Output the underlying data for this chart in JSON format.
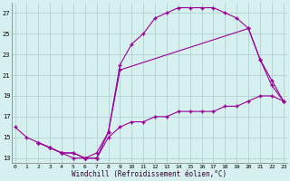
{
  "xlabel": "Windchill (Refroidissement éolien,°C)",
  "bg_color": "#d6f0ef",
  "line_color": "#990099",
  "grid_color": "#aacccc",
  "curve1_x": [
    0,
    1,
    2,
    3,
    4,
    5,
    6,
    7,
    8,
    9,
    10,
    11,
    12,
    13,
    14,
    15,
    16,
    17,
    18,
    19,
    20,
    21,
    22,
    23
  ],
  "curve1_y": [
    16.0,
    15.0,
    14.5,
    14.0,
    13.5,
    13.0,
    13.0,
    13.5,
    15.5,
    22.0,
    24.0,
    25.0,
    26.5,
    27.0,
    27.5,
    27.5,
    27.5,
    27.5,
    27.0,
    26.5,
    25.5,
    22.5,
    20.0,
    18.5
  ],
  "curve2_x": [
    2,
    3,
    4,
    5,
    6,
    7,
    8,
    9,
    20,
    21,
    22,
    23
  ],
  "curve2_y": [
    14.5,
    14.0,
    13.5,
    13.5,
    13.0,
    13.0,
    15.5,
    21.5,
    25.5,
    22.5,
    20.5,
    18.5
  ],
  "curve3_x": [
    2,
    3,
    4,
    5,
    6,
    7,
    8,
    9,
    10,
    11,
    12,
    13,
    14,
    15,
    16,
    17,
    18,
    19,
    20,
    21,
    22,
    23
  ],
  "curve3_y": [
    14.5,
    14.0,
    13.5,
    13.5,
    13.0,
    13.0,
    15.0,
    16.0,
    16.5,
    16.5,
    17.0,
    17.0,
    17.5,
    17.5,
    17.5,
    17.5,
    18.0,
    18.0,
    18.5,
    19.0,
    19.0,
    18.5
  ],
  "xlim": [
    -0.3,
    23.3
  ],
  "ylim": [
    12.5,
    28.0
  ],
  "yticks": [
    13,
    15,
    17,
    19,
    21,
    23,
    25,
    27
  ],
  "xticks": [
    0,
    1,
    2,
    3,
    4,
    5,
    6,
    7,
    8,
    9,
    10,
    11,
    12,
    13,
    14,
    15,
    16,
    17,
    18,
    19,
    20,
    21,
    22,
    23
  ],
  "figsize": [
    3.2,
    2.0
  ],
  "dpi": 100
}
